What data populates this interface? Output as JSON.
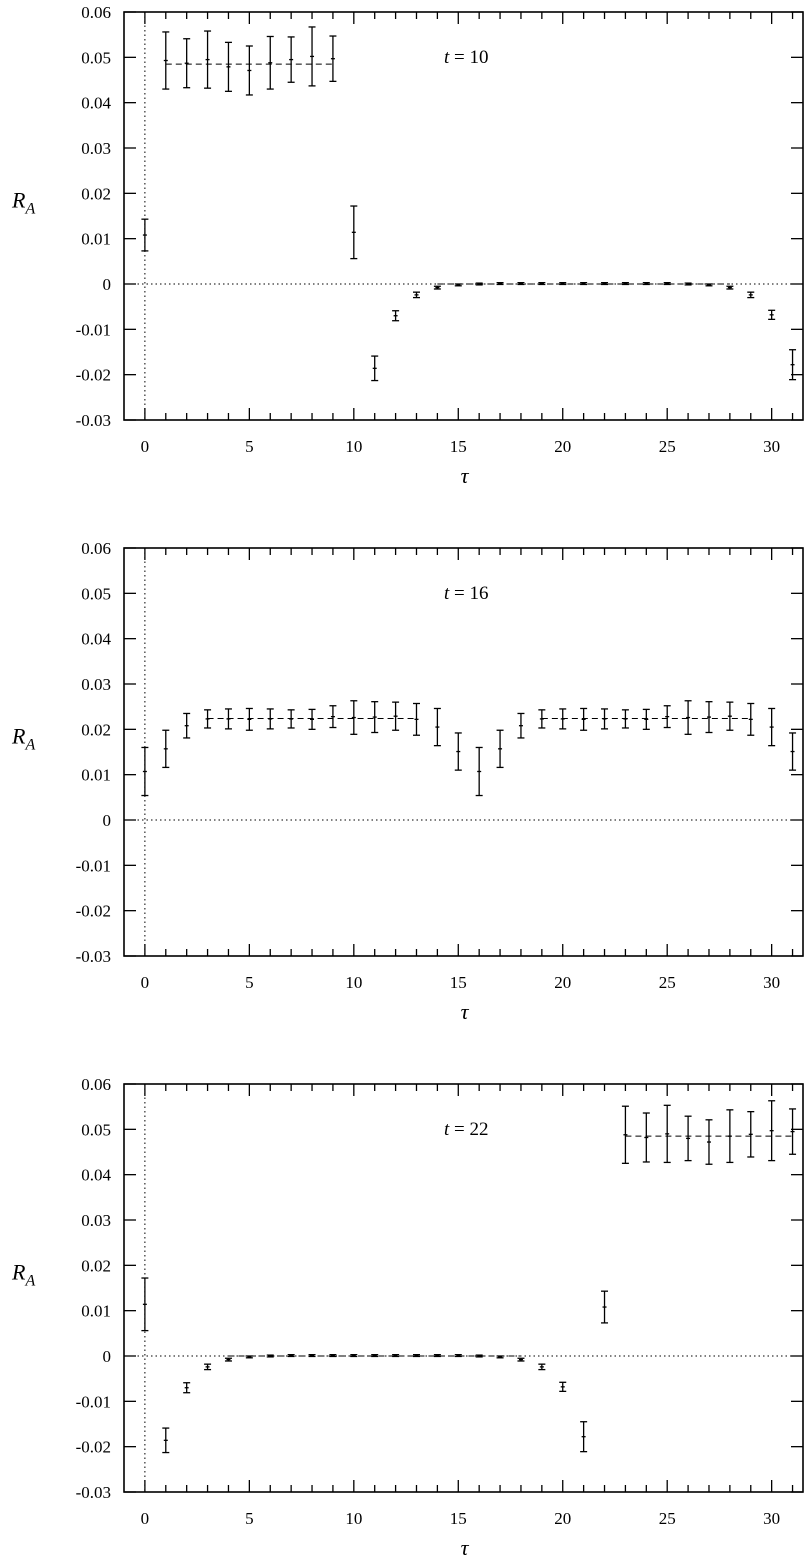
{
  "chart_data": [
    {
      "type": "scatter",
      "title": "",
      "annotation": "t = 10",
      "xlabel": "τ",
      "ylabel": "R_A",
      "xlim": [
        -1,
        31.5
      ],
      "ylim": [
        -0.03,
        0.06
      ],
      "xticks": [
        0,
        5,
        10,
        15,
        20,
        25,
        30
      ],
      "yticks": [
        -0.03,
        -0.02,
        -0.01,
        0,
        0.01,
        0.02,
        0.03,
        0.04,
        0.05,
        0.06
      ],
      "ytick_labels": [
        "-0.03",
        "-0.02",
        "-0.01",
        "0",
        "0.01",
        "0.02",
        "0.03",
        "0.04",
        "0.05",
        "0.06"
      ],
      "grid": false,
      "zero_lines": true,
      "fit_lines": [
        {
          "x": [
            1,
            9
          ],
          "y": 0.0485
        },
        {
          "x": [
            14,
            28
          ],
          "y": 0
        }
      ],
      "points": [
        {
          "x": 0,
          "y": 0.0108,
          "err": 0.0035
        },
        {
          "x": 1,
          "y": 0.0493,
          "err": 0.0063
        },
        {
          "x": 2,
          "y": 0.0487,
          "err": 0.0054
        },
        {
          "x": 3,
          "y": 0.0495,
          "err": 0.0063
        },
        {
          "x": 4,
          "y": 0.0479,
          "err": 0.0054
        },
        {
          "x": 5,
          "y": 0.0471,
          "err": 0.0054
        },
        {
          "x": 6,
          "y": 0.0488,
          "err": 0.0058
        },
        {
          "x": 7,
          "y": 0.0495,
          "err": 0.005
        },
        {
          "x": 8,
          "y": 0.0502,
          "err": 0.0065
        },
        {
          "x": 9,
          "y": 0.0497,
          "err": 0.005
        },
        {
          "x": 10,
          "y": 0.0114,
          "err": 0.0058
        },
        {
          "x": 11,
          "y": -0.0186,
          "err": 0.0027
        },
        {
          "x": 12,
          "y": -0.007,
          "err": 0.0011
        },
        {
          "x": 13,
          "y": -0.0024,
          "err": 0.0006
        },
        {
          "x": 14,
          "y": -0.0008,
          "err": 0.0003
        },
        {
          "x": 15,
          "y": -0.0002,
          "err": 0.0002
        },
        {
          "x": 16,
          "y": 0.0,
          "err": 0.0002
        },
        {
          "x": 17,
          "y": 0.0001,
          "err": 0.0002
        },
        {
          "x": 18,
          "y": 0.0001,
          "err": 0.0002
        },
        {
          "x": 19,
          "y": 0.0001,
          "err": 0.0002
        },
        {
          "x": 20,
          "y": 0.0001,
          "err": 0.0002
        },
        {
          "x": 21,
          "y": 0.0001,
          "err": 0.0002
        },
        {
          "x": 22,
          "y": 0.0001,
          "err": 0.0002
        },
        {
          "x": 23,
          "y": 0.0001,
          "err": 0.0002
        },
        {
          "x": 24,
          "y": 0.0001,
          "err": 0.0002
        },
        {
          "x": 25,
          "y": 0.0001,
          "err": 0.0002
        },
        {
          "x": 26,
          "y": 0.0,
          "err": 0.0002
        },
        {
          "x": 27,
          "y": -0.0002,
          "err": 0.0002
        },
        {
          "x": 28,
          "y": -0.0008,
          "err": 0.0003
        },
        {
          "x": 29,
          "y": -0.0024,
          "err": 0.0006
        },
        {
          "x": 30,
          "y": -0.0068,
          "err": 0.001
        },
        {
          "x": 31,
          "y": -0.0178,
          "err": 0.0033
        }
      ]
    },
    {
      "type": "scatter",
      "title": "",
      "annotation": "t = 16",
      "xlabel": "τ",
      "ylabel": "R_A",
      "xlim": [
        -1,
        31.5
      ],
      "ylim": [
        -0.03,
        0.06
      ],
      "xticks": [
        0,
        5,
        10,
        15,
        20,
        25,
        30
      ],
      "yticks": [
        -0.03,
        -0.02,
        -0.01,
        0,
        0.01,
        0.02,
        0.03,
        0.04,
        0.05,
        0.06
      ],
      "ytick_labels": [
        "-0.03",
        "-0.02",
        "-0.01",
        "0",
        "0.01",
        "0.02",
        "0.03",
        "0.04",
        "0.05",
        "0.06"
      ],
      "grid": false,
      "zero_lines": true,
      "fit_lines": [
        {
          "x": [
            3,
            13
          ],
          "y": 0.0224
        },
        {
          "x": [
            19,
            29
          ],
          "y": 0.0224
        }
      ],
      "points": [
        {
          "x": 0,
          "y": 0.0107,
          "err": 0.0053
        },
        {
          "x": 1,
          "y": 0.0157,
          "err": 0.0041
        },
        {
          "x": 2,
          "y": 0.0208,
          "err": 0.0027
        },
        {
          "x": 3,
          "y": 0.0223,
          "err": 0.002
        },
        {
          "x": 4,
          "y": 0.0223,
          "err": 0.0022
        },
        {
          "x": 5,
          "y": 0.0222,
          "err": 0.0024
        },
        {
          "x": 6,
          "y": 0.0223,
          "err": 0.0022
        },
        {
          "x": 7,
          "y": 0.0223,
          "err": 0.002
        },
        {
          "x": 8,
          "y": 0.0222,
          "err": 0.0022
        },
        {
          "x": 9,
          "y": 0.0228,
          "err": 0.0024
        },
        {
          "x": 10,
          "y": 0.0226,
          "err": 0.0037
        },
        {
          "x": 11,
          "y": 0.0227,
          "err": 0.0034
        },
        {
          "x": 12,
          "y": 0.0229,
          "err": 0.0031
        },
        {
          "x": 13,
          "y": 0.0222,
          "err": 0.0035
        },
        {
          "x": 14,
          "y": 0.0205,
          "err": 0.0041
        },
        {
          "x": 15,
          "y": 0.0151,
          "err": 0.0041
        },
        {
          "x": 16,
          "y": 0.0107,
          "err": 0.0053
        },
        {
          "x": 17,
          "y": 0.0157,
          "err": 0.0041
        },
        {
          "x": 18,
          "y": 0.0208,
          "err": 0.0027
        },
        {
          "x": 19,
          "y": 0.0223,
          "err": 0.002
        },
        {
          "x": 20,
          "y": 0.0223,
          "err": 0.0022
        },
        {
          "x": 21,
          "y": 0.0222,
          "err": 0.0024
        },
        {
          "x": 22,
          "y": 0.0223,
          "err": 0.0022
        },
        {
          "x": 23,
          "y": 0.0223,
          "err": 0.002
        },
        {
          "x": 24,
          "y": 0.0222,
          "err": 0.0022
        },
        {
          "x": 25,
          "y": 0.0228,
          "err": 0.0024
        },
        {
          "x": 26,
          "y": 0.0226,
          "err": 0.0037
        },
        {
          "x": 27,
          "y": 0.0227,
          "err": 0.0034
        },
        {
          "x": 28,
          "y": 0.0229,
          "err": 0.0031
        },
        {
          "x": 29,
          "y": 0.0222,
          "err": 0.0035
        },
        {
          "x": 30,
          "y": 0.0205,
          "err": 0.0041
        },
        {
          "x": 31,
          "y": 0.0151,
          "err": 0.0041
        }
      ]
    },
    {
      "type": "scatter",
      "title": "",
      "annotation": "t = 22",
      "xlabel": "τ",
      "ylabel": "R_A",
      "xlim": [
        -1,
        31.5
      ],
      "ylim": [
        -0.03,
        0.06
      ],
      "xticks": [
        0,
        5,
        10,
        15,
        20,
        25,
        30
      ],
      "yticks": [
        -0.03,
        -0.02,
        -0.01,
        0,
        0.01,
        0.02,
        0.03,
        0.04,
        0.05,
        0.06
      ],
      "ytick_labels": [
        "-0.03",
        "-0.02",
        "-0.01",
        "0",
        "0.01",
        "0.02",
        "0.03",
        "0.04",
        "0.05",
        "0.06"
      ],
      "grid": false,
      "zero_lines": true,
      "fit_lines": [
        {
          "x": [
            4,
            18
          ],
          "y": 0
        },
        {
          "x": [
            23,
            31
          ],
          "y": 0.0485
        }
      ],
      "points": [
        {
          "x": 0,
          "y": 0.0114,
          "err": 0.0058
        },
        {
          "x": 1,
          "y": -0.0186,
          "err": 0.0027
        },
        {
          "x": 2,
          "y": -0.007,
          "err": 0.0011
        },
        {
          "x": 3,
          "y": -0.0024,
          "err": 0.0006
        },
        {
          "x": 4,
          "y": -0.0008,
          "err": 0.0003
        },
        {
          "x": 5,
          "y": -0.0002,
          "err": 0.0002
        },
        {
          "x": 6,
          "y": 0.0,
          "err": 0.0002
        },
        {
          "x": 7,
          "y": 0.0001,
          "err": 0.0002
        },
        {
          "x": 8,
          "y": 0.0001,
          "err": 0.0002
        },
        {
          "x": 9,
          "y": 0.0001,
          "err": 0.0002
        },
        {
          "x": 10,
          "y": 0.0001,
          "err": 0.0002
        },
        {
          "x": 11,
          "y": 0.0001,
          "err": 0.0002
        },
        {
          "x": 12,
          "y": 0.0001,
          "err": 0.0002
        },
        {
          "x": 13,
          "y": 0.0001,
          "err": 0.0002
        },
        {
          "x": 14,
          "y": 0.0001,
          "err": 0.0002
        },
        {
          "x": 15,
          "y": 0.0001,
          "err": 0.0002
        },
        {
          "x": 16,
          "y": 0.0,
          "err": 0.0002
        },
        {
          "x": 17,
          "y": -0.0002,
          "err": 0.0002
        },
        {
          "x": 18,
          "y": -0.0008,
          "err": 0.0003
        },
        {
          "x": 19,
          "y": -0.0024,
          "err": 0.0006
        },
        {
          "x": 20,
          "y": -0.0068,
          "err": 0.001
        },
        {
          "x": 21,
          "y": -0.0178,
          "err": 0.0033
        },
        {
          "x": 22,
          "y": 0.0108,
          "err": 0.0035
        },
        {
          "x": 23,
          "y": 0.0488,
          "err": 0.0063
        },
        {
          "x": 24,
          "y": 0.0482,
          "err": 0.0054
        },
        {
          "x": 25,
          "y": 0.049,
          "err": 0.0063
        },
        {
          "x": 26,
          "y": 0.048,
          "err": 0.0049
        },
        {
          "x": 27,
          "y": 0.0472,
          "err": 0.0049
        },
        {
          "x": 28,
          "y": 0.0485,
          "err": 0.0058
        },
        {
          "x": 29,
          "y": 0.0489,
          "err": 0.005
        },
        {
          "x": 30,
          "y": 0.0497,
          "err": 0.0066
        },
        {
          "x": 31,
          "y": 0.0495,
          "err": 0.005
        }
      ]
    }
  ]
}
